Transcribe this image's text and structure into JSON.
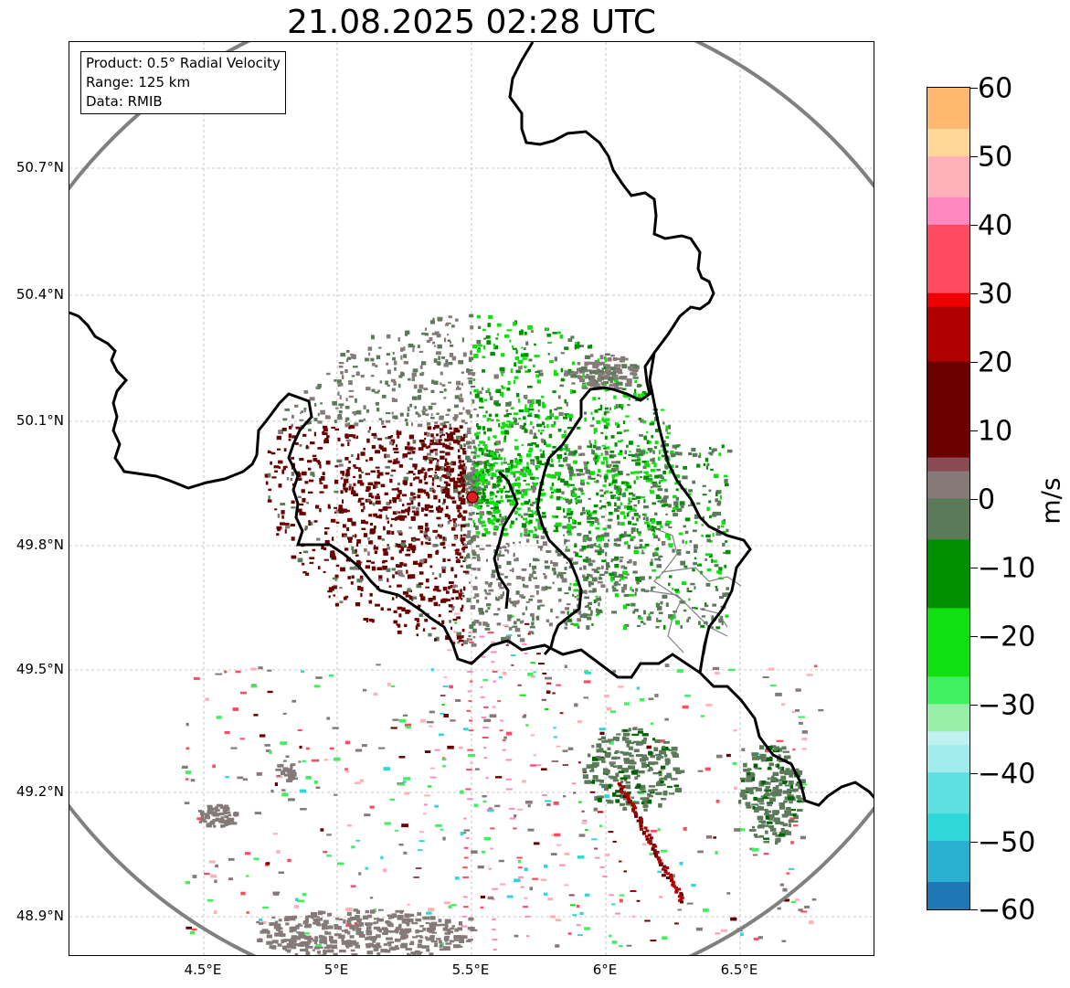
{
  "map": {
    "title": "21.08.2025 02:28 UTC",
    "info_lines": [
      "Product: 0.5° Radial Velocity",
      "Range: 125 km",
      "Data: RMIB"
    ],
    "lat_labels": [
      "50.7°N",
      "50.4°N",
      "50.1°N",
      "49.8°N",
      "49.5°N",
      "49.2°N",
      "48.9°N"
    ],
    "lon_labels": [
      "4.5°E",
      "5°E",
      "5.5°E",
      "6°E",
      "6.5°E"
    ],
    "radar_site": {
      "lat": 49.91,
      "lon": 5.51
    },
    "range_ring_color": "#808080",
    "border_color": "#000000",
    "grid": "on"
  },
  "colorbar": {
    "unit": "m/s",
    "ticks": [
      "60",
      "50",
      "40",
      "30",
      "20",
      "10",
      "0",
      "−10",
      "−20",
      "−30",
      "−40",
      "−50",
      "−60"
    ],
    "min": -60,
    "max": 60,
    "stops": [
      {
        "v": -60,
        "c": "#1f77b4"
      },
      {
        "v": -55,
        "c": "#2ab0d0"
      },
      {
        "v": -50,
        "c": "#2ed8d8"
      },
      {
        "v": -45,
        "c": "#5ee0e0"
      },
      {
        "v": -40,
        "c": "#a0ecec"
      },
      {
        "v": -36,
        "c": "#c0f0f0"
      },
      {
        "v": -33,
        "c": "#98f0a8"
      },
      {
        "v": -30,
        "c": "#40f060"
      },
      {
        "v": -25,
        "c": "#10e010"
      },
      {
        "v": -15,
        "c": "#009000"
      },
      {
        "v": -6,
        "c": "#006400"
      },
      {
        "v": -5,
        "c": "#5a7a5a"
      },
      {
        "v": 0,
        "c": "#857a78"
      },
      {
        "v": 5,
        "c": "#8a4a52"
      },
      {
        "v": 6,
        "c": "#6a0000"
      },
      {
        "v": 20,
        "c": "#b00000"
      },
      {
        "v": 29,
        "c": "#f00000"
      },
      {
        "v": 30,
        "c": "#ff4a60"
      },
      {
        "v": 40,
        "c": "#ff88c0"
      },
      {
        "v": 45,
        "c": "#ffb0b8"
      },
      {
        "v": 50,
        "c": "#ffd898"
      },
      {
        "v": 55,
        "c": "#ffb870"
      },
      {
        "v": 60,
        "c": "#ff9a50"
      }
    ]
  }
}
